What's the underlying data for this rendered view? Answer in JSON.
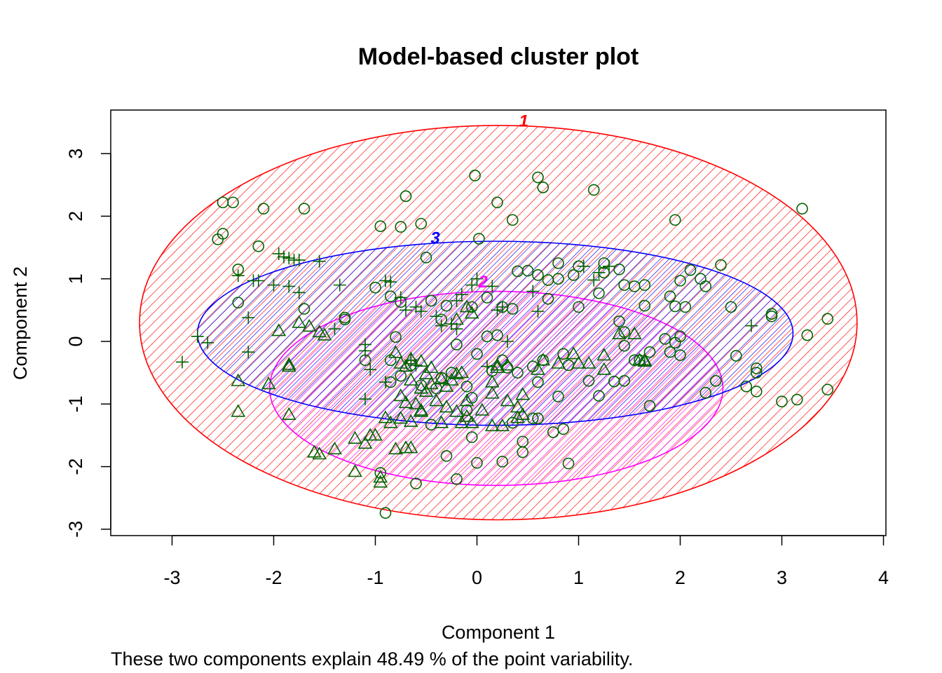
{
  "chart_data": {
    "type": "scatter",
    "title": "Model-based cluster plot",
    "xlabel": "Component 1",
    "ylabel": "Component 2",
    "subtitle": "These two components explain 48.49 % of the point variability.",
    "xlim": [
      -3.6,
      4.0
    ],
    "ylim": [
      -3.1,
      3.7
    ],
    "xticks": [
      "-3",
      "-2",
      "-1",
      "0",
      "1",
      "2",
      "3",
      "4"
    ],
    "yticks": [
      "-3",
      "-2",
      "-1",
      "0",
      "1",
      "2",
      "3"
    ],
    "grid": false,
    "point_color": "#006400",
    "clusters": [
      {
        "label": "1",
        "color": "#ff0000",
        "center": [
          0.21,
          0.3
        ],
        "rx": 3.53,
        "ry": 3.15
      },
      {
        "label": "2",
        "color": "#ff00ff",
        "center": [
          0.19,
          -0.75
        ],
        "rx": 2.23,
        "ry": 1.55
      },
      {
        "label": "3",
        "color": "#0000ff",
        "center": [
          0.18,
          0.13
        ],
        "rx": 2.93,
        "ry": 1.47
      }
    ],
    "series": [
      {
        "name": "1",
        "marker": "circle",
        "points": [
          [
            -2.5,
            2.22
          ],
          [
            -2.4,
            2.22
          ],
          [
            -2.1,
            2.12
          ],
          [
            -1.7,
            2.12
          ],
          [
            -2.55,
            1.63
          ],
          [
            -2.5,
            1.72
          ],
          [
            -0.7,
            2.32
          ],
          [
            -0.95,
            1.84
          ],
          [
            -0.75,
            1.83
          ],
          [
            -0.55,
            1.88
          ],
          [
            -0.02,
            2.65
          ],
          [
            0.6,
            2.62
          ],
          [
            0.65,
            2.46
          ],
          [
            1.15,
            2.42
          ],
          [
            0.2,
            2.22
          ],
          [
            0.35,
            1.94
          ],
          [
            0.02,
            1.64
          ],
          [
            1.95,
            1.94
          ],
          [
            3.2,
            2.12
          ],
          [
            -2.15,
            1.52
          ],
          [
            -0.5,
            1.34
          ],
          [
            2.4,
            1.22
          ],
          [
            2.1,
            1.14
          ],
          [
            2.2,
            1.0
          ],
          [
            2.25,
            0.88
          ],
          [
            2.0,
            0.97
          ],
          [
            2.5,
            0.55
          ],
          [
            2.9,
            0.44
          ],
          [
            2.9,
            0.4
          ],
          [
            3.45,
            0.36
          ],
          [
            3.25,
            0.1
          ],
          [
            2.55,
            -0.23
          ],
          [
            2.75,
            -0.43
          ],
          [
            2.75,
            -0.5
          ],
          [
            2.65,
            -0.72
          ],
          [
            2.75,
            -0.8
          ],
          [
            2.35,
            -0.63
          ],
          [
            2.25,
            -0.82
          ],
          [
            3.0,
            -0.96
          ],
          [
            3.15,
            -0.93
          ],
          [
            3.45,
            -0.77
          ],
          [
            2.0,
            0.08
          ],
          [
            1.85,
            0.04
          ],
          [
            1.95,
            -0.02
          ],
          [
            1.9,
            -0.17
          ],
          [
            2.0,
            -0.22
          ],
          [
            1.6,
            -0.3
          ],
          [
            1.7,
            -0.17
          ],
          [
            1.45,
            -0.63
          ],
          [
            1.7,
            -1.03
          ],
          [
            0.9,
            -1.95
          ],
          [
            0.85,
            -1.4
          ],
          [
            0.75,
            -1.45
          ],
          [
            0.6,
            -1.23
          ],
          [
            0.45,
            -1.6
          ],
          [
            0.45,
            -1.77
          ],
          [
            0.25,
            -1.92
          ],
          [
            0.0,
            -1.94
          ],
          [
            -0.2,
            -2.2
          ],
          [
            -0.6,
            -2.27
          ],
          [
            -0.95,
            -2.1
          ],
          [
            -0.9,
            -2.74
          ],
          [
            -0.3,
            -1.83
          ],
          [
            -0.05,
            -1.53
          ],
          [
            -2.35,
            1.15
          ],
          [
            -2.35,
            0.62
          ],
          [
            -1.3,
            0.35
          ],
          [
            -1.3,
            0.38
          ],
          [
            -1.0,
            0.86
          ],
          [
            -0.85,
            0.72
          ],
          [
            -0.75,
            0.63
          ],
          [
            -1.7,
            0.52
          ],
          [
            -0.45,
            0.65
          ],
          [
            -0.3,
            0.57
          ],
          [
            -0.05,
            0.55
          ],
          [
            0.1,
            0.7
          ],
          [
            0.25,
            0.55
          ],
          [
            0.35,
            0.52
          ],
          [
            0.4,
            1.12
          ],
          [
            0.5,
            1.13
          ],
          [
            0.6,
            1.06
          ],
          [
            0.7,
            0.98
          ],
          [
            0.8,
            1.0
          ],
          [
            0.95,
            1.06
          ],
          [
            1.0,
            1.2
          ],
          [
            1.2,
            0.77
          ],
          [
            1.4,
            1.15
          ],
          [
            1.45,
            0.9
          ],
          [
            1.55,
            0.88
          ],
          [
            1.65,
            0.9
          ],
          [
            1.65,
            0.57
          ],
          [
            1.9,
            0.72
          ],
          [
            2.05,
            0.55
          ],
          [
            1.95,
            0.56
          ],
          [
            1.4,
            0.32
          ],
          [
            1.45,
            0.15
          ],
          [
            1.45,
            -0.07
          ],
          [
            1.55,
            -0.3
          ],
          [
            1.35,
            -0.64
          ],
          [
            1.1,
            -0.63
          ],
          [
            1.0,
            0.55
          ],
          [
            0.8,
            -0.88
          ],
          [
            0.6,
            -0.65
          ],
          [
            0.55,
            -0.4
          ],
          [
            0.4,
            -0.5
          ],
          [
            0.3,
            -0.42
          ],
          [
            0.15,
            -0.47
          ],
          [
            0.1,
            0.08
          ],
          [
            0.0,
            -0.2
          ],
          [
            -0.1,
            -0.72
          ],
          [
            -0.35,
            -0.58
          ],
          [
            -0.55,
            -0.7
          ],
          [
            -0.75,
            -0.55
          ],
          [
            -0.85,
            -0.3
          ],
          [
            -1.1,
            -0.3
          ],
          [
            -0.8,
            0.07
          ],
          [
            -0.65,
            -0.38
          ],
          [
            -0.4,
            -0.75
          ],
          [
            -0.25,
            -0.5
          ],
          [
            -0.2,
            -0.05
          ],
          [
            0.55,
            -1.23
          ],
          [
            0.35,
            -1.3
          ],
          [
            -0.05,
            -0.9
          ],
          [
            0.7,
            0.68
          ],
          [
            0.8,
            1.25
          ],
          [
            1.25,
            1.25
          ],
          [
            0.85,
            -0.2
          ],
          [
            0.65,
            -0.3
          ],
          [
            0.9,
            -0.38
          ],
          [
            1.2,
            -0.87
          ],
          [
            0.25,
            -0.3
          ],
          [
            -0.35,
            0.35
          ],
          [
            -0.85,
            -0.65
          ],
          [
            -0.1,
            -1.1
          ],
          [
            -0.45,
            -1.33
          ],
          [
            0.2,
            0.1
          ],
          [
            1.25,
            1.1
          ]
        ]
      },
      {
        "name": "2",
        "marker": "triangle",
        "points": [
          [
            -2.35,
            -0.63
          ],
          [
            -2.35,
            -1.12
          ],
          [
            -1.95,
            0.17
          ],
          [
            -1.75,
            0.3
          ],
          [
            -1.65,
            0.24
          ],
          [
            -1.55,
            0.15
          ],
          [
            -1.5,
            0.1
          ],
          [
            -1.85,
            -0.37
          ],
          [
            -1.85,
            -0.4
          ],
          [
            -2.05,
            -0.68
          ],
          [
            -1.85,
            -1.17
          ],
          [
            -1.6,
            -1.77
          ],
          [
            -1.4,
            -1.72
          ],
          [
            -1.55,
            -1.8
          ],
          [
            -1.2,
            -1.55
          ],
          [
            -1.05,
            -1.5
          ],
          [
            -1.1,
            -1.63
          ],
          [
            -1.2,
            -2.08
          ],
          [
            -0.95,
            -2.17
          ],
          [
            -0.95,
            -2.25
          ],
          [
            -0.8,
            -1.72
          ],
          [
            -0.7,
            -1.7
          ],
          [
            -0.65,
            -1.7
          ],
          [
            -0.9,
            -1.22
          ],
          [
            -0.85,
            -1.3
          ],
          [
            -0.75,
            -1.23
          ],
          [
            -0.65,
            -1.28
          ],
          [
            -0.55,
            -1.1
          ],
          [
            -0.75,
            -0.87
          ],
          [
            -0.7,
            -0.98
          ],
          [
            -0.75,
            -0.35
          ],
          [
            -0.8,
            -0.18
          ],
          [
            -0.65,
            -0.28
          ],
          [
            -0.55,
            -0.32
          ],
          [
            -0.65,
            -0.62
          ],
          [
            -0.5,
            -0.52
          ],
          [
            -0.45,
            -0.42
          ],
          [
            -0.35,
            -0.6
          ],
          [
            -0.3,
            -0.72
          ],
          [
            -0.45,
            -0.68
          ],
          [
            -0.55,
            -0.75
          ],
          [
            -0.5,
            -0.8
          ],
          [
            -0.6,
            -1.0
          ],
          [
            -0.4,
            -0.95
          ],
          [
            -0.3,
            -1.05
          ],
          [
            -0.2,
            -1.12
          ],
          [
            -0.25,
            -0.62
          ],
          [
            -0.15,
            -0.5
          ],
          [
            -0.2,
            -0.52
          ],
          [
            -0.1,
            -1.2
          ],
          [
            -0.05,
            -1.3
          ],
          [
            -0.15,
            -1.3
          ],
          [
            0.05,
            -1.1
          ],
          [
            0.15,
            -0.65
          ],
          [
            0.15,
            -0.83
          ],
          [
            0.2,
            -0.38
          ],
          [
            0.2,
            -0.42
          ],
          [
            0.3,
            -0.38
          ],
          [
            0.45,
            -0.85
          ],
          [
            0.4,
            -1.05
          ],
          [
            0.4,
            -1.22
          ],
          [
            0.45,
            -1.17
          ],
          [
            0.15,
            -1.35
          ],
          [
            0.25,
            -1.35
          ],
          [
            0.6,
            -0.45
          ],
          [
            0.65,
            -0.3
          ],
          [
            0.8,
            -0.35
          ],
          [
            0.95,
            -0.2
          ],
          [
            1.0,
            -0.35
          ],
          [
            1.1,
            -0.35
          ],
          [
            1.25,
            -0.45
          ],
          [
            1.25,
            -0.22
          ],
          [
            1.4,
            0.12
          ],
          [
            1.55,
            0.12
          ],
          [
            1.6,
            -0.3
          ],
          [
            1.65,
            -0.3
          ],
          [
            1.65,
            -0.32
          ],
          [
            -0.05,
            0.45
          ],
          [
            -0.1,
            0.55
          ],
          [
            -0.2,
            0.35
          ],
          [
            -0.1,
            -0.95
          ],
          [
            -0.35,
            -1.3
          ],
          [
            -0.55,
            -1.12
          ],
          [
            -0.7,
            -0.4
          ],
          [
            -1.0,
            -1.5
          ],
          [
            0.3,
            -0.95
          ]
        ]
      },
      {
        "name": "3",
        "marker": "plus",
        "points": [
          [
            -2.75,
            0.08
          ],
          [
            -2.65,
            -0.02
          ],
          [
            -2.9,
            -0.33
          ],
          [
            -2.25,
            0.38
          ],
          [
            -2.25,
            -0.17
          ],
          [
            -2.35,
            1.05
          ],
          [
            -2.2,
            0.97
          ],
          [
            -2.15,
            0.97
          ],
          [
            -2.0,
            0.9
          ],
          [
            -1.95,
            1.4
          ],
          [
            -1.9,
            1.35
          ],
          [
            -1.85,
            1.33
          ],
          [
            -1.8,
            1.3
          ],
          [
            -1.75,
            1.3
          ],
          [
            -1.55,
            1.28
          ],
          [
            -1.85,
            0.88
          ],
          [
            -1.75,
            0.78
          ],
          [
            -1.35,
            0.9
          ],
          [
            -1.4,
            0.2
          ],
          [
            -1.1,
            -0.05
          ],
          [
            -1.1,
            -0.15
          ],
          [
            -1.05,
            -0.45
          ],
          [
            -1.1,
            -0.92
          ],
          [
            -0.9,
            -0.65
          ],
          [
            -0.9,
            0.97
          ],
          [
            -0.85,
            0.95
          ],
          [
            -0.75,
            0.7
          ],
          [
            -0.7,
            0.5
          ],
          [
            -0.6,
            0.55
          ],
          [
            -0.55,
            0.48
          ],
          [
            -0.4,
            0.4
          ],
          [
            -0.35,
            0.25
          ],
          [
            -0.25,
            0.28
          ],
          [
            -0.2,
            0.65
          ],
          [
            -0.15,
            0.75
          ],
          [
            -0.05,
            0.9
          ],
          [
            0.0,
            1.0
          ],
          [
            0.2,
            0.5
          ],
          [
            0.25,
            0.55
          ],
          [
            0.15,
            0.88
          ],
          [
            0.55,
            0.8
          ],
          [
            0.6,
            0.48
          ],
          [
            1.15,
            0.98
          ],
          [
            1.2,
            1.1
          ],
          [
            1.3,
            1.2
          ],
          [
            0.3,
            0.0
          ],
          [
            0.1,
            -0.4
          ],
          [
            -0.65,
            -0.3
          ],
          [
            -0.6,
            -0.38
          ],
          [
            -0.2,
            0.2
          ],
          [
            2.7,
            0.25
          ],
          [
            1.05,
            1.2
          ]
        ]
      }
    ]
  }
}
